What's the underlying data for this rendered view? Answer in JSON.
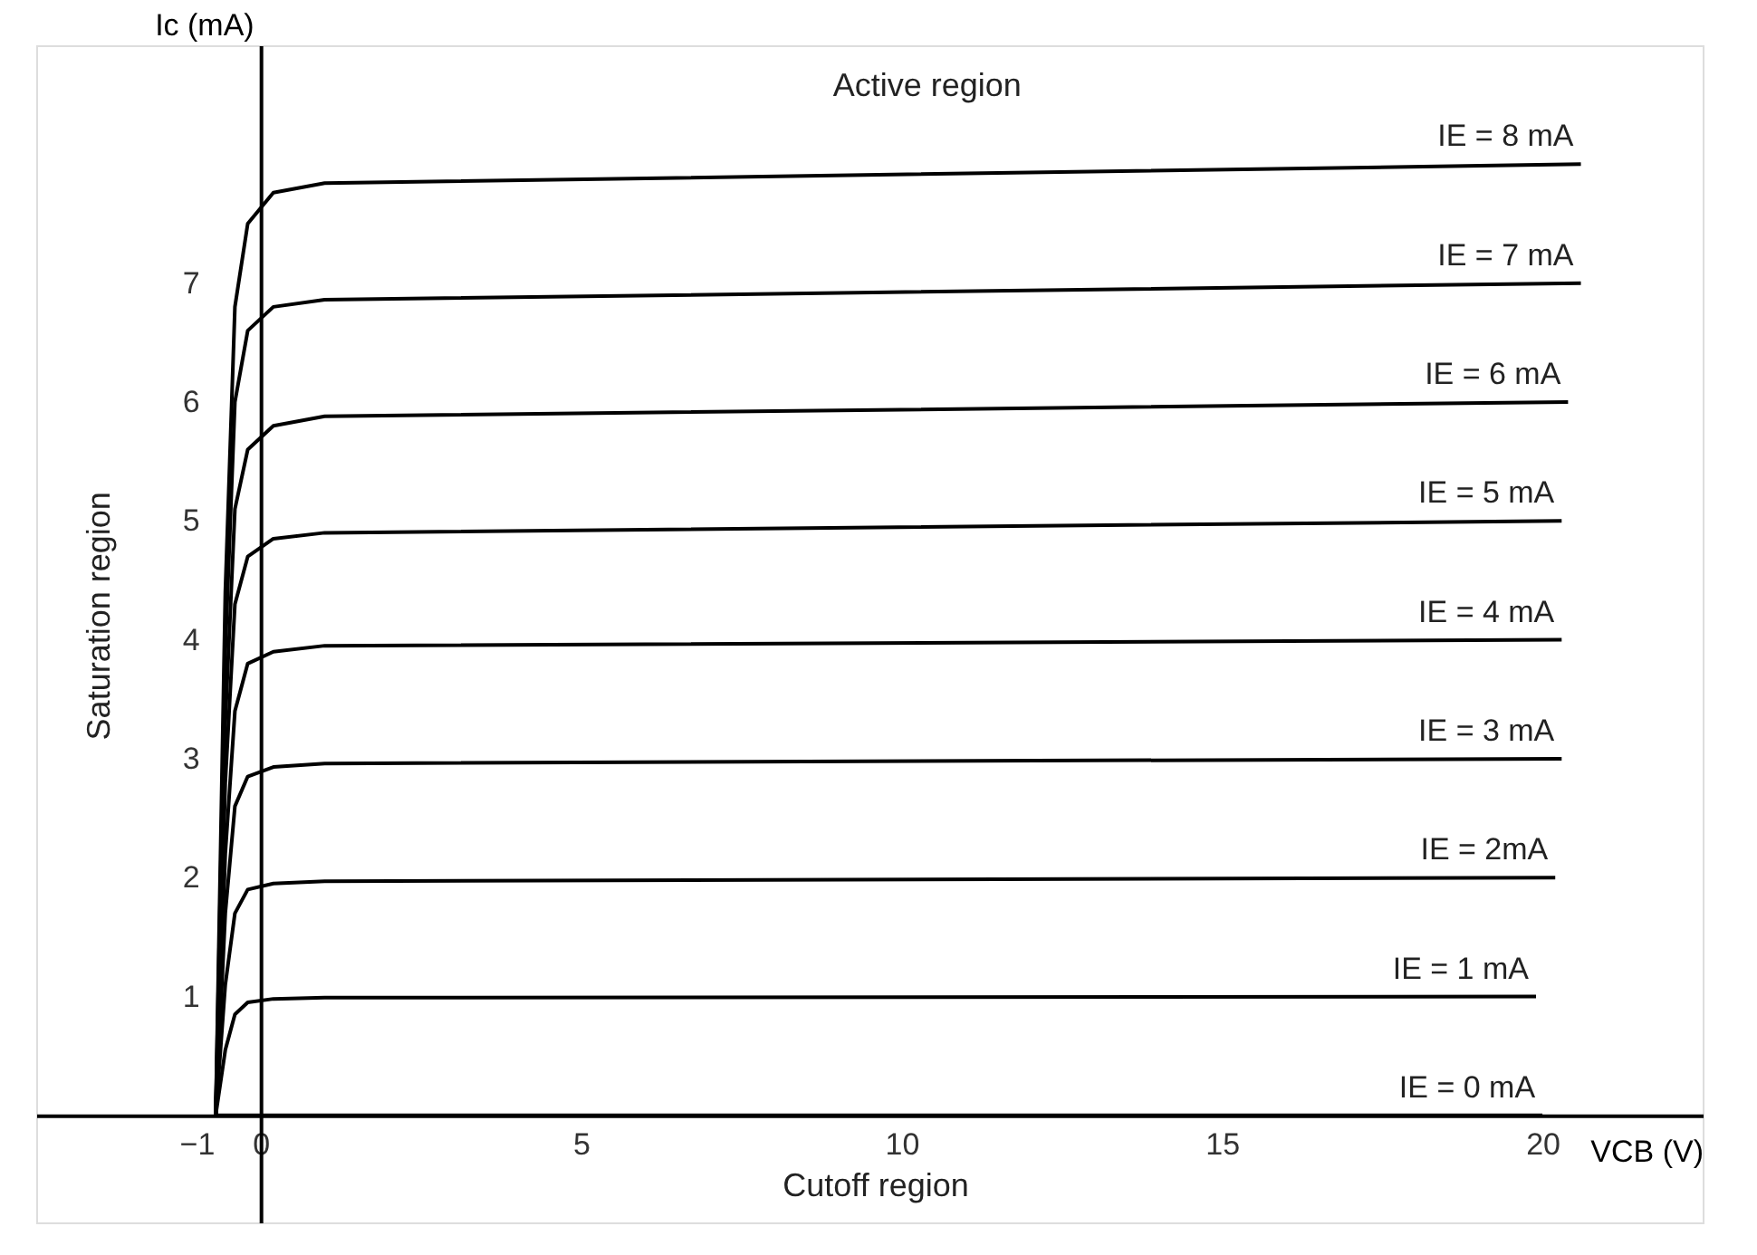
{
  "chart_data": {
    "type": "line",
    "xlabel": "VCB (V)",
    "ylabel": "Ic (mA)",
    "xlim": [
      -3.5,
      22.5
    ],
    "ylim": [
      -0.9,
      9.0
    ],
    "xticks": [
      -1,
      0,
      5,
      10,
      15,
      20
    ],
    "yticks": [
      1,
      2,
      3,
      4,
      5,
      6,
      7
    ],
    "grid": false,
    "line_style": "solid",
    "marker": "none",
    "annotations": [
      "Active region",
      "Saturation region",
      "Cutoff region"
    ],
    "series": [
      {
        "name": "IE = 8 mA",
        "color": "#000000",
        "x": [
          -0.7,
          -0.55,
          -0.4,
          -0.2,
          0.2,
          1,
          20.6
        ],
        "values": [
          0,
          4.4,
          6.8,
          7.5,
          7.76,
          7.84,
          8.0
        ]
      },
      {
        "name": "IE = 7 mA",
        "color": "#000000",
        "x": [
          -0.7,
          -0.55,
          -0.4,
          -0.2,
          0.2,
          1,
          20.6
        ],
        "values": [
          0,
          3.9,
          6.0,
          6.6,
          6.8,
          6.86,
          7.0
        ]
      },
      {
        "name": "IE = 6 mA",
        "color": "#000000",
        "x": [
          -0.7,
          -0.55,
          -0.4,
          -0.2,
          0.2,
          1,
          20.4
        ],
        "values": [
          0,
          3.3,
          5.1,
          5.6,
          5.8,
          5.88,
          6.0
        ]
      },
      {
        "name": "IE = 5 mA",
        "color": "#000000",
        "x": [
          -0.7,
          -0.55,
          -0.4,
          -0.2,
          0.2,
          1,
          20.3
        ],
        "values": [
          0,
          2.8,
          4.3,
          4.7,
          4.85,
          4.9,
          5.0
        ]
      },
      {
        "name": "IE = 4 mA",
        "color": "#000000",
        "x": [
          -0.7,
          -0.55,
          -0.4,
          -0.2,
          0.2,
          1,
          20.3
        ],
        "values": [
          0,
          2.2,
          3.4,
          3.8,
          3.9,
          3.95,
          4.0
        ]
      },
      {
        "name": "IE = 3 mA",
        "color": "#000000",
        "x": [
          -0.7,
          -0.55,
          -0.4,
          -0.2,
          0.2,
          1,
          20.3
        ],
        "values": [
          0,
          1.7,
          2.6,
          2.85,
          2.93,
          2.96,
          3.0
        ]
      },
      {
        "name": "IE = 2mA",
        "color": "#000000",
        "x": [
          -0.7,
          -0.55,
          -0.4,
          -0.2,
          0.2,
          1,
          20.2
        ],
        "values": [
          0,
          1.1,
          1.7,
          1.9,
          1.95,
          1.97,
          2.0
        ]
      },
      {
        "name": "IE = 1 mA",
        "color": "#000000",
        "x": [
          -0.7,
          -0.55,
          -0.4,
          -0.2,
          0.2,
          1,
          19.9
        ],
        "values": [
          0,
          0.55,
          0.85,
          0.95,
          0.98,
          0.99,
          1.0
        ]
      },
      {
        "name": "IE = 0 mA",
        "color": "#000000",
        "x": [
          -0.7,
          20.0
        ],
        "values": [
          0,
          0
        ]
      }
    ]
  }
}
